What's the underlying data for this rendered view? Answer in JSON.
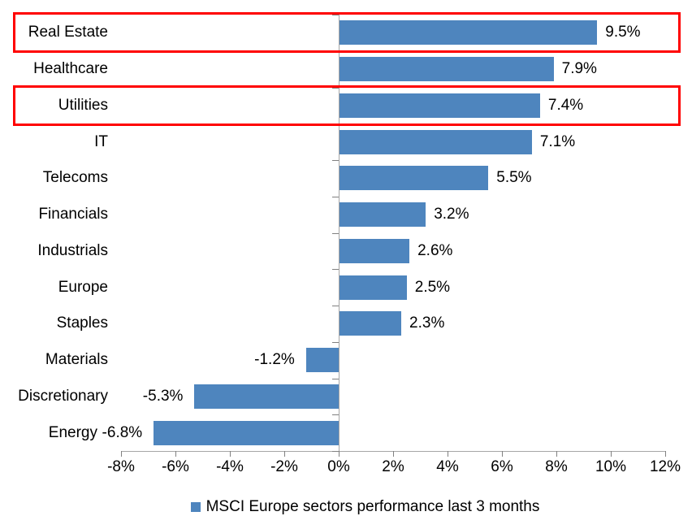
{
  "chart_data": {
    "type": "bar",
    "orientation": "horizontal",
    "title": "",
    "categories": [
      "Real Estate",
      "Healthcare",
      "Utilities",
      "IT",
      "Telecoms",
      "Financials",
      "Industrials",
      "Europe",
      "Staples",
      "Materials",
      "Discretionary",
      "Energy"
    ],
    "values": [
      9.5,
      7.9,
      7.4,
      7.1,
      5.5,
      3.2,
      2.6,
      2.5,
      2.3,
      -1.2,
      -5.3,
      -6.8
    ],
    "value_labels": [
      "9.5%",
      "7.9%",
      "7.4%",
      "7.1%",
      "5.5%",
      "3.2%",
      "2.6%",
      "2.5%",
      "2.3%",
      "-1.2%",
      "-5.3%",
      "-6.8%"
    ],
    "xlim": [
      -8,
      12
    ],
    "x_tick_step": 2,
    "x_tick_labels": [
      "-8%",
      "-6%",
      "-4%",
      "-2%",
      "0%",
      "2%",
      "4%",
      "6%",
      "8%",
      "10%",
      "12%"
    ],
    "grid": "off",
    "legend": "MSCI Europe sectors performance last 3 months",
    "legend_position": "bottom",
    "highlighted_categories": [
      "Real Estate",
      "Utilities"
    ],
    "colors": {
      "bar": "#4e85be",
      "highlight_box": "#ff0000",
      "axis_line": "#a6a6a6",
      "axis_tick": "#808080",
      "text": "#000000",
      "background": "#ffffff"
    }
  }
}
